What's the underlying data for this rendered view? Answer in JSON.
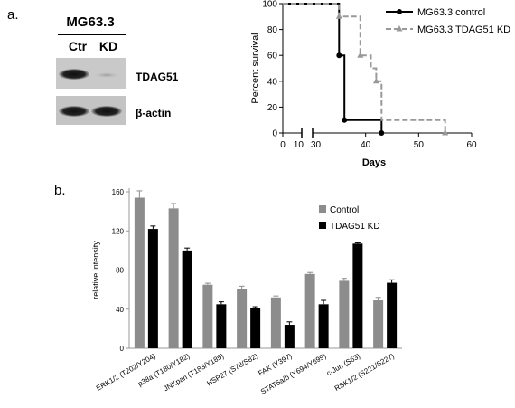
{
  "figure": {
    "panel_a_label": "a.",
    "panel_b_label": "b."
  },
  "blot": {
    "title": "MG63.3",
    "columns": [
      "Ctr",
      "KD"
    ],
    "bands": [
      {
        "label": "TDAG51",
        "ctr_intensity": 0.92,
        "kd_intensity": 0.15
      },
      {
        "label": "β-actin",
        "ctr_intensity": 0.85,
        "kd_intensity": 0.85
      }
    ]
  },
  "chart_data": [
    {
      "type": "line",
      "subtype": "kaplan-meier survival",
      "title": "",
      "xlabel": "Days",
      "ylabel": "Percent survival",
      "x_ticks": [
        "0",
        "10",
        "30",
        "40",
        "50",
        "60"
      ],
      "y_ticks": [
        "0",
        "20",
        "40",
        "60",
        "80",
        "100"
      ],
      "axis_break": [
        10,
        30
      ],
      "xlim": [
        0,
        60
      ],
      "ylim": [
        0,
        100
      ],
      "legend_position": "top-right",
      "series": [
        {
          "name": "MG63.3 control",
          "color": "#000000",
          "style": "solid",
          "marker": "circle",
          "x": [
            0,
            35,
            35,
            36,
            36,
            43,
            43
          ],
          "y": [
            100,
            100,
            60,
            60,
            10,
            10,
            0
          ],
          "markers": [
            [
              35,
              60
            ],
            [
              36,
              10
            ],
            [
              43,
              0
            ]
          ]
        },
        {
          "name": "MG63.3 TDAG51 KD",
          "color": "#999999",
          "style": "dashed",
          "marker": "triangle",
          "x": [
            0,
            35,
            35,
            39,
            39,
            41,
            41,
            42,
            42,
            43,
            43,
            55,
            55
          ],
          "y": [
            100,
            100,
            90,
            90,
            60,
            60,
            50,
            50,
            40,
            40,
            10,
            10,
            0
          ],
          "markers": [
            [
              35,
              90
            ],
            [
              39,
              60
            ],
            [
              42,
              40
            ],
            [
              55,
              0
            ]
          ]
        }
      ]
    },
    {
      "type": "bar",
      "title": "",
      "xlabel": "",
      "ylabel": "relative intensity",
      "ylim": [
        0,
        160
      ],
      "y_ticks": [
        "0",
        "40",
        "80",
        "120",
        "160"
      ],
      "legend_position": "top-right",
      "categories": [
        "ERK1/2 (T202/Y204)",
        "p38a (T180/Y182)",
        "JNKpan (T183/Y185)",
        "HSP27 (S78/S82)",
        "FAK (Y397)",
        "STAT5a/b (Y694/Y699)",
        "c-Jun (S63)",
        "RSK1/2 (S221/S227)"
      ],
      "series": [
        {
          "name": "Control",
          "color": "#8c8c8c",
          "values": [
            154,
            143,
            65,
            61,
            52,
            76,
            69,
            49
          ],
          "errors": [
            7,
            5,
            1.5,
            2.5,
            1.5,
            1.5,
            2.5,
            3
          ]
        },
        {
          "name": "TDAG51 KD",
          "color": "#000000",
          "values": [
            122,
            100,
            45,
            41,
            24,
            45,
            107,
            67
          ],
          "errors": [
            3,
            2.5,
            2.5,
            1.5,
            3,
            4,
            0.8,
            3
          ]
        }
      ]
    }
  ]
}
